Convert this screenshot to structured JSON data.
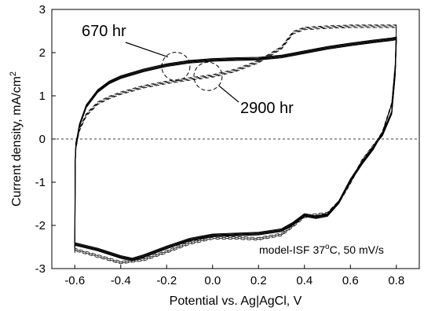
{
  "chart_data": {
    "type": "line",
    "xlabel": "Potential vs. Ag|AgCl, V",
    "ylabel_main": "Current density, mA/cm",
    "ylabel_sup": "2",
    "xlim": [
      -0.7,
      0.9
    ],
    "ylim": [
      -3,
      3
    ],
    "xticks": [
      "-0.6",
      "-0.4",
      "-0.2",
      "0.0",
      "0.2",
      "0.4",
      "0.6",
      "0.8"
    ],
    "yticks": [
      "-3",
      "-2",
      "-1",
      "0",
      "1",
      "2",
      "3"
    ],
    "grid": false,
    "zero_line": "dashed",
    "annotations": {
      "label_670": "670 hr",
      "label_2900": "2900 hr",
      "circle_670": {
        "x": -0.16,
        "y": 1.68
      },
      "circle_2900": {
        "x": -0.02,
        "y": 1.45
      },
      "condition_main": "model-ISF 37",
      "condition_sup": "o",
      "condition_rest": "C, 50 mV/s"
    },
    "series": [
      {
        "style": "solid",
        "anodic": [
          [
            -0.6,
            -2.5
          ],
          [
            -0.598,
            -0.5
          ],
          [
            -0.595,
            -0.1
          ],
          [
            -0.58,
            0.3
          ],
          [
            -0.55,
            0.75
          ],
          [
            -0.5,
            1.1
          ],
          [
            -0.45,
            1.3
          ],
          [
            -0.4,
            1.42
          ],
          [
            -0.3,
            1.58
          ],
          [
            -0.2,
            1.7
          ],
          [
            -0.1,
            1.78
          ],
          [
            0.0,
            1.82
          ],
          [
            0.1,
            1.84
          ],
          [
            0.2,
            1.85
          ],
          [
            0.3,
            1.9
          ],
          [
            0.4,
            2.0
          ],
          [
            0.5,
            2.1
          ],
          [
            0.6,
            2.18
          ],
          [
            0.7,
            2.25
          ],
          [
            0.78,
            2.3
          ],
          [
            0.8,
            2.32
          ]
        ],
        "cathodic": [
          [
            0.8,
            2.32
          ],
          [
            0.795,
            1.5
          ],
          [
            0.78,
            0.6
          ],
          [
            0.74,
            0.1
          ],
          [
            0.7,
            -0.2
          ],
          [
            0.65,
            -0.55
          ],
          [
            0.6,
            -0.95
          ],
          [
            0.55,
            -1.45
          ],
          [
            0.5,
            -1.75
          ],
          [
            0.45,
            -1.8
          ],
          [
            0.4,
            -1.75
          ],
          [
            0.35,
            -1.95
          ],
          [
            0.3,
            -2.1
          ],
          [
            0.2,
            -2.18
          ],
          [
            0.1,
            -2.2
          ],
          [
            0.0,
            -2.22
          ],
          [
            -0.1,
            -2.32
          ],
          [
            -0.2,
            -2.5
          ],
          [
            -0.3,
            -2.7
          ],
          [
            -0.35,
            -2.78
          ],
          [
            -0.4,
            -2.72
          ],
          [
            -0.5,
            -2.55
          ],
          [
            -0.6,
            -2.42
          ]
        ]
      },
      {
        "style": "dashed",
        "anodic": [
          [
            -0.6,
            -2.6
          ],
          [
            -0.598,
            -0.6
          ],
          [
            -0.595,
            -0.2
          ],
          [
            -0.58,
            0.2
          ],
          [
            -0.55,
            0.55
          ],
          [
            -0.5,
            0.82
          ],
          [
            -0.45,
            0.95
          ],
          [
            -0.4,
            1.05
          ],
          [
            -0.3,
            1.2
          ],
          [
            -0.2,
            1.3
          ],
          [
            -0.1,
            1.38
          ],
          [
            0.0,
            1.45
          ],
          [
            0.1,
            1.58
          ],
          [
            0.2,
            1.78
          ],
          [
            0.3,
            2.1
          ],
          [
            0.35,
            2.45
          ],
          [
            0.4,
            2.55
          ],
          [
            0.5,
            2.58
          ],
          [
            0.6,
            2.6
          ],
          [
            0.7,
            2.6
          ],
          [
            0.8,
            2.6
          ]
        ],
        "cathodic": [
          [
            0.8,
            2.6
          ],
          [
            0.795,
            1.7
          ],
          [
            0.78,
            0.8
          ],
          [
            0.74,
            0.15
          ],
          [
            0.7,
            -0.15
          ],
          [
            0.65,
            -0.5
          ],
          [
            0.6,
            -1.0
          ],
          [
            0.55,
            -1.45
          ],
          [
            0.5,
            -1.72
          ],
          [
            0.45,
            -1.75
          ],
          [
            0.4,
            -1.78
          ],
          [
            0.35,
            -2.0
          ],
          [
            0.3,
            -2.2
          ],
          [
            0.2,
            -2.3
          ],
          [
            0.1,
            -2.28
          ],
          [
            0.0,
            -2.28
          ],
          [
            -0.1,
            -2.4
          ],
          [
            -0.2,
            -2.6
          ],
          [
            -0.3,
            -2.78
          ],
          [
            -0.4,
            -2.85
          ],
          [
            -0.5,
            -2.7
          ],
          [
            -0.6,
            -2.55
          ]
        ]
      }
    ]
  }
}
